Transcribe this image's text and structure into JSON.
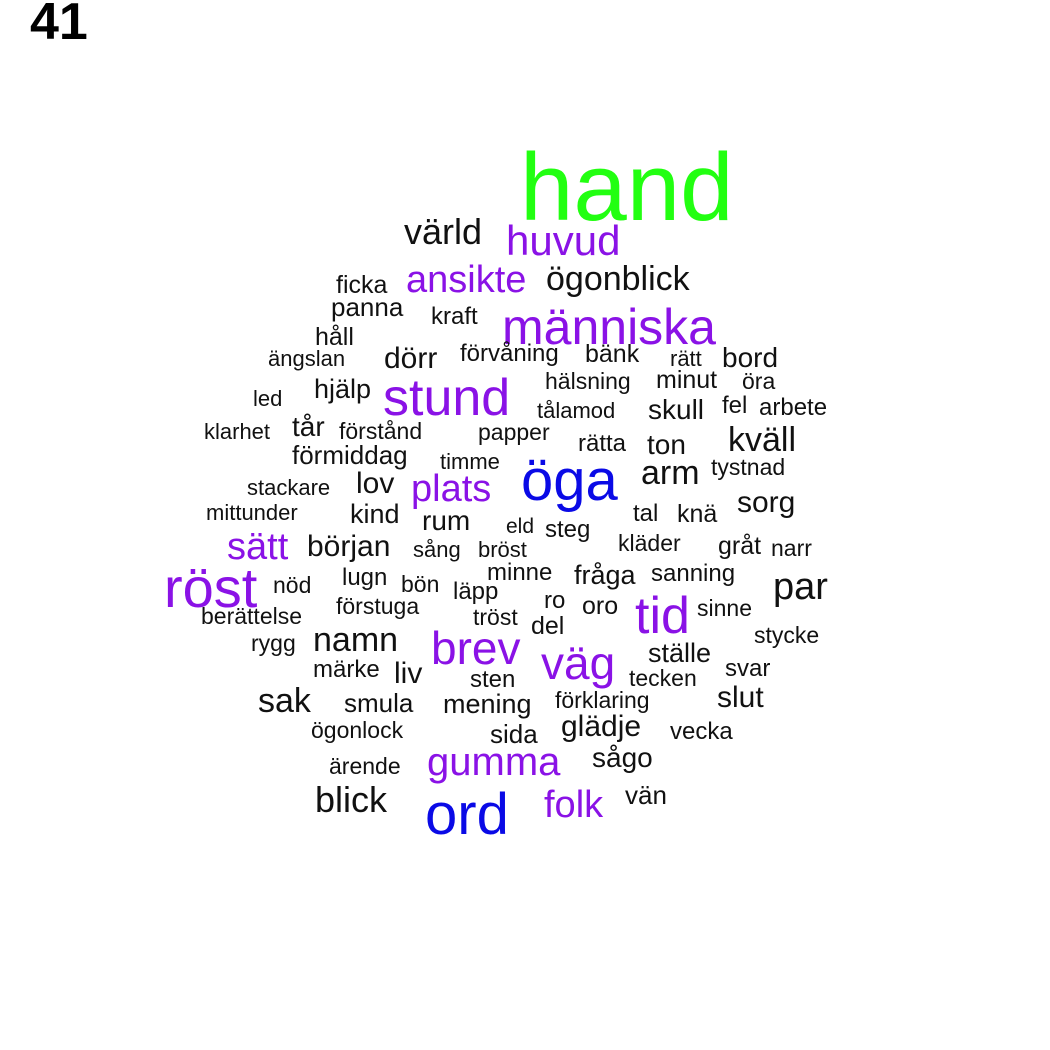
{
  "page_number": "41",
  "colors": {
    "green": "#22ff11",
    "blue": "#0a0ae6",
    "purple": "#8a12e6",
    "black": "#111111"
  },
  "words": [
    {
      "text": "hand",
      "color": "green"
    },
    {
      "text": "värld",
      "color": "black"
    },
    {
      "text": "huvud",
      "color": "purple"
    },
    {
      "text": "ansikte",
      "color": "purple"
    },
    {
      "text": "ögonblick",
      "color": "black"
    },
    {
      "text": "ficka",
      "color": "black"
    },
    {
      "text": "panna",
      "color": "black"
    },
    {
      "text": "kraft",
      "color": "black"
    },
    {
      "text": "människa",
      "color": "purple"
    },
    {
      "text": "håll",
      "color": "black"
    },
    {
      "text": "ängslan",
      "color": "black"
    },
    {
      "text": "dörr",
      "color": "black"
    },
    {
      "text": "förvåning",
      "color": "black"
    },
    {
      "text": "bänk",
      "color": "black"
    },
    {
      "text": "rätt",
      "color": "black"
    },
    {
      "text": "bord",
      "color": "black"
    },
    {
      "text": "hälsning",
      "color": "black"
    },
    {
      "text": "minut",
      "color": "black"
    },
    {
      "text": "öra",
      "color": "black"
    },
    {
      "text": "hjälp",
      "color": "black"
    },
    {
      "text": "stund",
      "color": "purple"
    },
    {
      "text": "led",
      "color": "black"
    },
    {
      "text": "tålamod",
      "color": "black"
    },
    {
      "text": "skull",
      "color": "black"
    },
    {
      "text": "fel",
      "color": "black"
    },
    {
      "text": "arbete",
      "color": "black"
    },
    {
      "text": "klarhet",
      "color": "black"
    },
    {
      "text": "tår",
      "color": "black"
    },
    {
      "text": "förstånd",
      "color": "black"
    },
    {
      "text": "papper",
      "color": "black"
    },
    {
      "text": "rätta",
      "color": "black"
    },
    {
      "text": "ton",
      "color": "black"
    },
    {
      "text": "kväll",
      "color": "black"
    },
    {
      "text": "förmiddag",
      "color": "black"
    },
    {
      "text": "timme",
      "color": "black"
    },
    {
      "text": "öga",
      "color": "blue"
    },
    {
      "text": "arm",
      "color": "black"
    },
    {
      "text": "tystnad",
      "color": "black"
    },
    {
      "text": "stackare",
      "color": "black"
    },
    {
      "text": "lov",
      "color": "black"
    },
    {
      "text": "plats",
      "color": "purple"
    },
    {
      "text": "sorg",
      "color": "black"
    },
    {
      "text": "mittunder",
      "color": "black"
    },
    {
      "text": "kind",
      "color": "black"
    },
    {
      "text": "rum",
      "color": "black"
    },
    {
      "text": "eld",
      "color": "black"
    },
    {
      "text": "steg",
      "color": "black"
    },
    {
      "text": "tal",
      "color": "black"
    },
    {
      "text": "knä",
      "color": "black"
    },
    {
      "text": "sätt",
      "color": "purple"
    },
    {
      "text": "början",
      "color": "black"
    },
    {
      "text": "sång",
      "color": "black"
    },
    {
      "text": "bröst",
      "color": "black"
    },
    {
      "text": "kläder",
      "color": "black"
    },
    {
      "text": "gråt",
      "color": "black"
    },
    {
      "text": "narr",
      "color": "black"
    },
    {
      "text": "röst",
      "color": "purple"
    },
    {
      "text": "lugn",
      "color": "black"
    },
    {
      "text": "minne",
      "color": "black"
    },
    {
      "text": "fråga",
      "color": "black"
    },
    {
      "text": "sanning",
      "color": "black"
    },
    {
      "text": "par",
      "color": "black"
    },
    {
      "text": "nöd",
      "color": "black"
    },
    {
      "text": "bön",
      "color": "black"
    },
    {
      "text": "läpp",
      "color": "black"
    },
    {
      "text": "ro",
      "color": "black"
    },
    {
      "text": "förstuga",
      "color": "black"
    },
    {
      "text": "oro",
      "color": "black"
    },
    {
      "text": "tid",
      "color": "purple"
    },
    {
      "text": "sinne",
      "color": "black"
    },
    {
      "text": "berättelse",
      "color": "black"
    },
    {
      "text": "tröst",
      "color": "black"
    },
    {
      "text": "del",
      "color": "black"
    },
    {
      "text": "stycke",
      "color": "black"
    },
    {
      "text": "rygg",
      "color": "black"
    },
    {
      "text": "namn",
      "color": "black"
    },
    {
      "text": "brev",
      "color": "purple"
    },
    {
      "text": "väg",
      "color": "purple"
    },
    {
      "text": "ställe",
      "color": "black"
    },
    {
      "text": "märke",
      "color": "black"
    },
    {
      "text": "liv",
      "color": "black"
    },
    {
      "text": "sten",
      "color": "black"
    },
    {
      "text": "tecken",
      "color": "black"
    },
    {
      "text": "svar",
      "color": "black"
    },
    {
      "text": "sak",
      "color": "black"
    },
    {
      "text": "smula",
      "color": "black"
    },
    {
      "text": "förklaring",
      "color": "black"
    },
    {
      "text": "slut",
      "color": "black"
    },
    {
      "text": "mening",
      "color": "black"
    },
    {
      "text": "ögonlock",
      "color": "black"
    },
    {
      "text": "glädje",
      "color": "black"
    },
    {
      "text": "sida",
      "color": "black"
    },
    {
      "text": "vecka",
      "color": "black"
    },
    {
      "text": "ärende",
      "color": "black"
    },
    {
      "text": "gumma",
      "color": "purple"
    },
    {
      "text": "sågo",
      "color": "black"
    },
    {
      "text": "blick",
      "color": "black"
    },
    {
      "text": "ord",
      "color": "blue"
    },
    {
      "text": "folk",
      "color": "purple"
    },
    {
      "text": "vän",
      "color": "black"
    }
  ]
}
